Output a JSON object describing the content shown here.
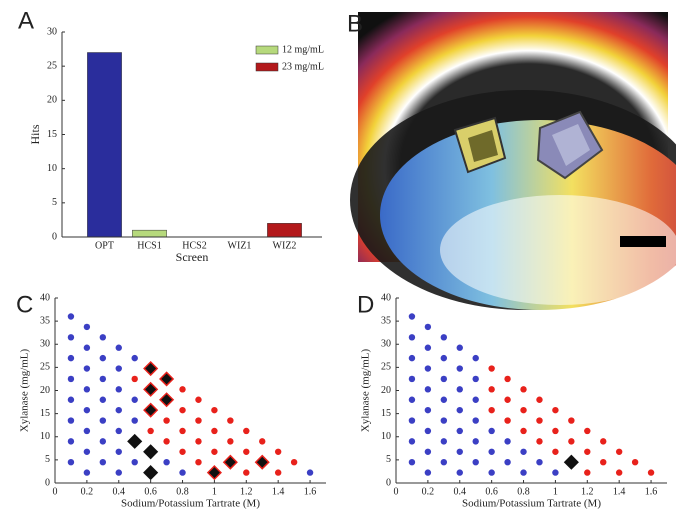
{
  "chart_data": [
    {
      "label": "A",
      "type": "bar",
      "xlabel": "Screen",
      "ylabel": "Hits",
      "categories": [
        "OPT",
        "HCS1",
        "HCS2",
        "WIZ1",
        "WIZ2"
      ],
      "series": [
        {
          "color": "#2a2d9c",
          "values": [
            27,
            null,
            null,
            null,
            null
          ]
        },
        {
          "name": "12 mg/mL",
          "color": "#b6d97c",
          "values": [
            null,
            1,
            null,
            null,
            null
          ]
        },
        {
          "name": "23 mg/mL",
          "color": "#b3191b",
          "values": [
            null,
            null,
            null,
            null,
            2
          ]
        }
      ],
      "ylim": [
        0,
        30
      ],
      "yticks": [
        0,
        5,
        10,
        15,
        20,
        25,
        30
      ],
      "legend": "upper right"
    },
    {
      "label": "C",
      "type": "scatter",
      "xlabel": "Sodium/Potassium Tartrate (M)",
      "ylabel": "Xylanase (mg/mL)",
      "xlim": [
        0,
        1.7
      ],
      "xticks": [
        0,
        0.2,
        0.4,
        0.6,
        0.8,
        1,
        1.2,
        1.4,
        1.6
      ],
      "ylim": [
        0,
        40
      ],
      "yticks": [
        0,
        5,
        10,
        15,
        20,
        25,
        30,
        35,
        40
      ],
      "series": [
        {
          "color": "#3b3fc4",
          "marker": "circle",
          "x": [
            0.1,
            0.1,
            0.1,
            0.1,
            0.1,
            0.1,
            0.1,
            0.1,
            0.2,
            0.2,
            0.2,
            0.2,
            0.2,
            0.2,
            0.2,
            0.2,
            0.3,
            0.3,
            0.3,
            0.3,
            0.3,
            0.3,
            0.3,
            0.4,
            0.4,
            0.4,
            0.4,
            0.4,
            0.4,
            0.4,
            0.5,
            0.5,
            0.5,
            0.5,
            0.7,
            0.8,
            1.6
          ],
          "y": [
            4.5,
            9,
            13.5,
            18,
            22.5,
            27,
            31.5,
            36,
            2.25,
            6.75,
            11.25,
            15.75,
            20.25,
            24.75,
            29.25,
            33.75,
            4.5,
            9,
            13.5,
            18,
            22.5,
            27,
            31.5,
            2.25,
            6.75,
            11.25,
            15.75,
            20.25,
            24.75,
            29.25,
            27,
            18,
            13.5,
            4.5,
            4.5,
            2.25,
            2.25
          ]
        },
        {
          "color": "#e8211b",
          "marker": "circle",
          "x": [
            0.5,
            0.6,
            0.7,
            0.7,
            0.8,
            0.8,
            0.8,
            0.8,
            0.9,
            0.9,
            0.9,
            0.9,
            1.0,
            1.0,
            1.0,
            1.1,
            1.1,
            1.2,
            1.2,
            1.2,
            1.3,
            1.4,
            1.4,
            1.5
          ],
          "y": [
            22.5,
            11.25,
            13.5,
            9,
            20.25,
            15.75,
            11.25,
            6.75,
            18,
            13.5,
            9,
            4.5,
            15.75,
            11.25,
            6.75,
            13.5,
            9,
            11.25,
            6.75,
            2.25,
            9,
            6.75,
            2.25,
            4.5
          ]
        },
        {
          "color": "#111111",
          "marker": "diamond",
          "edgecolor": "#e8211b",
          "x": [
            0.6,
            0.6,
            0.6,
            0.7,
            0.7,
            1.0,
            1.1,
            1.3
          ],
          "y": [
            24.75,
            20.25,
            15.75,
            22.5,
            18,
            2.25,
            4.5,
            4.5
          ]
        },
        {
          "color": "#111111",
          "marker": "diamond",
          "x": [
            0.5,
            0.6,
            0.6
          ],
          "y": [
            9,
            6.75,
            2.25
          ]
        }
      ]
    },
    {
      "label": "D",
      "type": "scatter",
      "xlabel": "Sodium/Potassium Tartrate (M)",
      "ylabel": "Xylanase (mg/mL)",
      "xlim": [
        0,
        1.7
      ],
      "xticks": [
        0,
        0.2,
        0.4,
        0.6,
        0.8,
        1,
        1.2,
        1.4,
        1.6
      ],
      "ylim": [
        0,
        40
      ],
      "yticks": [
        0,
        5,
        10,
        15,
        20,
        25,
        30,
        35,
        40
      ],
      "series": [
        {
          "color": "#3b3fc4",
          "marker": "circle",
          "x": [
            0.1,
            0.1,
            0.1,
            0.1,
            0.1,
            0.1,
            0.1,
            0.1,
            0.2,
            0.2,
            0.2,
            0.2,
            0.2,
            0.2,
            0.2,
            0.2,
            0.3,
            0.3,
            0.3,
            0.3,
            0.3,
            0.3,
            0.3,
            0.4,
            0.4,
            0.4,
            0.4,
            0.4,
            0.4,
            0.4,
            0.5,
            0.5,
            0.5,
            0.5,
            0.5,
            0.5,
            0.6,
            0.6,
            0.6,
            0.7,
            0.7,
            0.8,
            0.8,
            0.9,
            1.0
          ],
          "y": [
            4.5,
            9,
            13.5,
            18,
            22.5,
            27,
            31.5,
            36,
            2.25,
            6.75,
            11.25,
            15.75,
            20.25,
            24.75,
            29.25,
            33.75,
            4.5,
            9,
            13.5,
            18,
            22.5,
            27,
            31.5,
            2.25,
            6.75,
            11.25,
            15.75,
            20.25,
            24.75,
            29.25,
            4.5,
            9,
            13.5,
            18,
            22.5,
            27,
            11.25,
            6.75,
            2.25,
            9,
            4.5,
            6.75,
            2.25,
            4.5,
            2.25
          ]
        },
        {
          "color": "#e8211b",
          "marker": "circle",
          "x": [
            0.6,
            0.6,
            0.6,
            0.7,
            0.7,
            0.7,
            0.8,
            0.8,
            0.8,
            0.9,
            0.9,
            0.9,
            1.0,
            1.0,
            1.0,
            1.1,
            1.1,
            1.2,
            1.2,
            1.2,
            1.3,
            1.3,
            1.4,
            1.4,
            1.5,
            1.6
          ],
          "y": [
            24.75,
            20.25,
            15.75,
            22.5,
            18,
            13.5,
            20.25,
            15.75,
            11.25,
            18,
            13.5,
            9,
            15.75,
            11.25,
            6.75,
            13.5,
            9,
            11.25,
            6.75,
            2.25,
            9,
            4.5,
            6.75,
            2.25,
            4.5,
            2.25
          ]
        },
        {
          "color": "#111111",
          "marker": "diamond",
          "x": [
            1.1
          ],
          "y": [
            4.5
          ]
        }
      ]
    }
  ],
  "image": {
    "label": "B"
  }
}
